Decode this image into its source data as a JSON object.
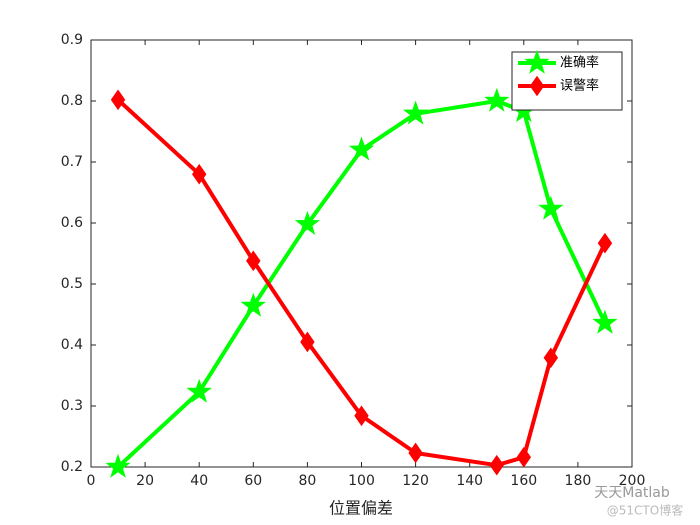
{
  "chart_data": {
    "type": "line",
    "xlabel": "位置偏差",
    "x": [
      10,
      40,
      60,
      80,
      100,
      120,
      150,
      160,
      170,
      190
    ],
    "series": [
      {
        "name": "准确率",
        "color": "#00ff00",
        "marker": "star",
        "values": [
          0.2,
          0.323,
          0.464,
          0.598,
          0.72,
          0.779,
          0.8,
          0.783,
          0.623,
          0.436
        ]
      },
      {
        "name": "误警率",
        "color": "#ff0000",
        "marker": "diamond",
        "values": [
          0.802,
          0.68,
          0.538,
          0.405,
          0.284,
          0.223,
          0.203,
          0.216,
          0.379,
          0.567
        ]
      }
    ],
    "xlim": [
      0,
      200
    ],
    "xticks": [
      0,
      20,
      40,
      60,
      80,
      100,
      120,
      140,
      160,
      180,
      200
    ],
    "ylim": [
      0.2,
      0.9
    ],
    "yticks": [
      0.2,
      0.3,
      0.4,
      0.5,
      0.6,
      0.7,
      0.8,
      0.9
    ],
    "legend": "northeast",
    "watermark": [
      "天天Matlab",
      "@51CTO博客"
    ]
  }
}
